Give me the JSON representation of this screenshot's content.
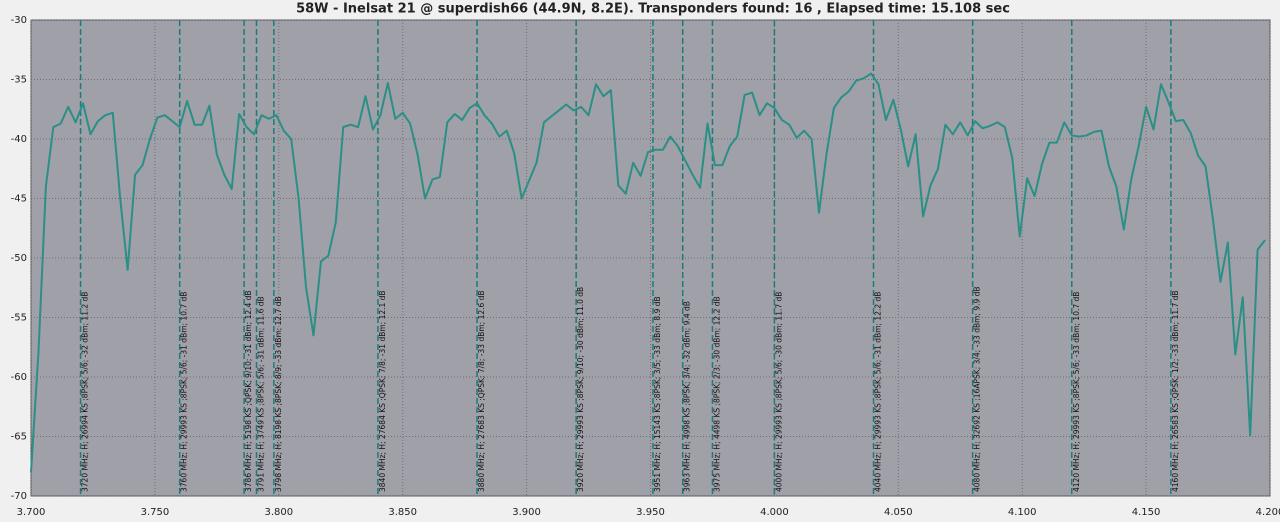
{
  "chart_data": {
    "type": "line",
    "title": "58W - Inelsat 21 @ superdish66 (44.9N, 8.2E). Transponders found: 16 , Elapsed time: 15.108 sec",
    "xlim": [
      3.7,
      4.2
    ],
    "ylim": [
      -70,
      -30
    ],
    "xticks": [
      {
        "value": 3.7,
        "label": "3.700"
      },
      {
        "value": 3.75,
        "label": "3.750"
      },
      {
        "value": 3.8,
        "label": "3.800"
      },
      {
        "value": 3.85,
        "label": "3.850"
      },
      {
        "value": 3.9,
        "label": "3.900"
      },
      {
        "value": 3.95,
        "label": "3.950"
      },
      {
        "value": 4.0,
        "label": "4.000"
      },
      {
        "value": 4.05,
        "label": "4.050"
      },
      {
        "value": 4.1,
        "label": "4.100"
      },
      {
        "value": 4.15,
        "label": "4.150"
      },
      {
        "value": 4.2,
        "label": "4.200"
      }
    ],
    "yticks": [
      -30,
      -35,
      -40,
      -45,
      -50,
      -55,
      -60,
      -65,
      -70
    ],
    "grid": true,
    "x": [
      3.7,
      3.703,
      3.706,
      3.709,
      3.712,
      3.715,
      3.718,
      3.721,
      3.724,
      3.727,
      3.73,
      3.733,
      3.736,
      3.739,
      3.742,
      3.745,
      3.748,
      3.751,
      3.754,
      3.757,
      3.76,
      3.763,
      3.766,
      3.769,
      3.772,
      3.775,
      3.778,
      3.781,
      3.784,
      3.787,
      3.79,
      3.793,
      3.796,
      3.799,
      3.802,
      3.805,
      3.808,
      3.811,
      3.814,
      3.817,
      3.82,
      3.823,
      3.826,
      3.829,
      3.832,
      3.835,
      3.838,
      3.841,
      3.844,
      3.847,
      3.85,
      3.853,
      3.856,
      3.859,
      3.862,
      3.865,
      3.868,
      3.871,
      3.874,
      3.877,
      3.88,
      3.883,
      3.886,
      3.889,
      3.892,
      3.895,
      3.898,
      3.901,
      3.904,
      3.907,
      3.91,
      3.913,
      3.916,
      3.919,
      3.922,
      3.925,
      3.928,
      3.931,
      3.934,
      3.937,
      3.94,
      3.943,
      3.946,
      3.949,
      3.952,
      3.955,
      3.958,
      3.961,
      3.964,
      3.967,
      3.97,
      3.973,
      3.976,
      3.979,
      3.982,
      3.985,
      3.988,
      3.991,
      3.994,
      3.997,
      4.0,
      4.003,
      4.006,
      4.009,
      4.012,
      4.015,
      4.018,
      4.021,
      4.024,
      4.027,
      4.03,
      4.033,
      4.036,
      4.039,
      4.042,
      4.045,
      4.048,
      4.051,
      4.054,
      4.057,
      4.06,
      4.063,
      4.066,
      4.069,
      4.072,
      4.075,
      4.078,
      4.081,
      4.084,
      4.087,
      4.09,
      4.093,
      4.096,
      4.099,
      4.102,
      4.105,
      4.108,
      4.111,
      4.114,
      4.117,
      4.12,
      4.123,
      4.126,
      4.129,
      4.132,
      4.135,
      4.138,
      4.141,
      4.144,
      4.147,
      4.15,
      4.153,
      4.156,
      4.159,
      4.162,
      4.165,
      4.168,
      4.171,
      4.174,
      4.177,
      4.18,
      4.183,
      4.186,
      4.189,
      4.192,
      4.195,
      4.198
    ],
    "series": [
      {
        "color": "#2a8f86",
        "values": [
          -68,
          -58,
          -44,
          -39,
          -38.7,
          -37.3,
          -38.6,
          -37,
          -39.6,
          -38.5,
          -38,
          -37.8,
          -45,
          -51,
          -43,
          -42.2,
          -40,
          -38.2,
          -38,
          -38.5,
          -39,
          -36.8,
          -38.8,
          -38.8,
          -37.2,
          -41.3,
          -43,
          -44.2,
          -37.9,
          -39,
          -39.6,
          -38,
          -38.3,
          -38,
          -39.3,
          -40,
          -45,
          -52.5,
          -56.5,
          -50.3,
          -49.8,
          -47,
          -39,
          -38.8,
          -39,
          -36.4,
          -39.2,
          -38,
          -35.3,
          -38.3,
          -37.8,
          -38.7,
          -41.3,
          -45,
          -43.4,
          -43.2,
          -38.6,
          -37.9,
          -38.4,
          -37.4,
          -37,
          -38,
          -38.7,
          -39.8,
          -39.3,
          -41.2,
          -45,
          -43.5,
          -42,
          -38.6,
          -38.1,
          -37.6,
          -37.1,
          -37.6,
          -37.3,
          -38,
          -35.4,
          -36.4,
          -35.9,
          -43.9,
          -44.6,
          -42,
          -43.1,
          -41.1,
          -40.9,
          -40.9,
          -39.8,
          -40.6,
          -41.8,
          -43,
          -44.1,
          -38.7,
          -42.2,
          -42.2,
          -40.6,
          -39.8,
          -36.3,
          -36.1,
          -38,
          -37,
          -37.4,
          -38.4,
          -38.8,
          -39.9,
          -39.3,
          -40,
          -46.2,
          -41.3,
          -37.4,
          -36.5,
          -36,
          -35.1,
          -34.9,
          -34.5,
          -35.4,
          -38.4,
          -36.7,
          -39.2,
          -42.3,
          -39.6,
          -46.5,
          -43.9,
          -42.5,
          -38.8,
          -39.6,
          -38.6,
          -39.7,
          -38.5,
          -39.1,
          -38.9,
          -38.6,
          -39,
          -41.6,
          -48.2,
          -43.3,
          -44.8,
          -42.1,
          -40.3,
          -40.3,
          -38.6,
          -39.7,
          -39.8,
          -39.7,
          -39.4,
          -39.3,
          -42.3,
          -44,
          -47.6,
          -43.4,
          -40.6,
          -37.3,
          -39.2,
          -35.4,
          -36.9,
          -38.5,
          -38.4,
          -39.5,
          -41.4,
          -42.3,
          -46.8,
          -52,
          -48.7,
          -58.1,
          -53.3,
          -64.9,
          -49.3,
          -48.5
        ]
      }
    ],
    "markers": [
      {
        "x": 3.72,
        "label": "3720 MHz; H; 26994 KS ;8PSK; 5/6; -32 dBm; 11.2 dB"
      },
      {
        "x": 3.76,
        "label": "3760 MHz; H; 29993 KS ;8PSK; 5/6; -31 dBm; 10.7 dB"
      },
      {
        "x": 3.786,
        "label": "3786 MHz; H; 5198 KS ;QPSK; 9/10; -31 dBm; 12.4 dB"
      },
      {
        "x": 3.791,
        "label": "3791 MHz; H; 3749 KS ;8PSK; 5/6; -31 dBm; 11.6 dB"
      },
      {
        "x": 3.798,
        "label": "3798 MHz; H; 8198 KS ;8PSK; 8/9; -33 dBm; 12.7 dB"
      },
      {
        "x": 3.84,
        "label": "3840 MHz; H; 27684 KS ;QPSK; 7/8; -31 dBm; 12.1 dB"
      },
      {
        "x": 3.88,
        "label": "3880 MHz; H; 27683 KS ;QPSK; 7/8; -33 dBm; 12.6 dB"
      },
      {
        "x": 3.92,
        "label": "3920 MHz; H; 29993 KS ;8PSK; 9/10; -30 dBm; 11.0 dB"
      },
      {
        "x": 3.951,
        "label": "3951 MHz; H; 15143 KS ;8PSK; 3/5; -33 dBm; 8.9 dB"
      },
      {
        "x": 3.963,
        "label": "3963 MHz; H; 4998 KS ;8PSK; 3/4; -32 dBm; 9.4 dB"
      },
      {
        "x": 3.975,
        "label": "3975 MHz; H; 4498 KS ;8PSK; 2/3; -30 dBm; 12.2 dB"
      },
      {
        "x": 4.0,
        "label": "4000 MHz; H; 29993 KS ;8PSK; 5/6; -30 dBm; 11.7 dB"
      },
      {
        "x": 4.04,
        "label": "4040 MHz; H; 29993 KS ;8PSK; 5/6; -31 dBm; 12.2 dB"
      },
      {
        "x": 4.08,
        "label": "4080 MHz; H; 32692 KS ;16APSK; 3/4; -33 dBm; 9.9 dB"
      },
      {
        "x": 4.12,
        "label": "4120 MHz; H; 29993 KS ;8PSK; 5/6; -33 dBm; 10.7 dB"
      },
      {
        "x": 4.16,
        "label": "4160 MHz; H; 26583 KS ;QPSK; 1/2; -33 dBm; 11.7 dB"
      }
    ],
    "marker_color": "#1b7c78",
    "plot_background": "#a0a0a8"
  }
}
